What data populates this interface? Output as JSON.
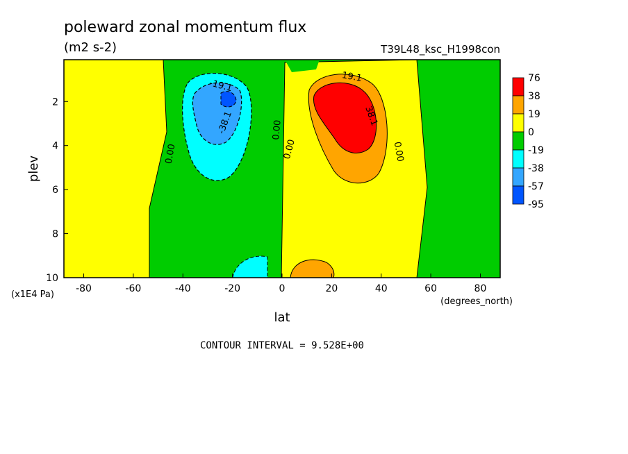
{
  "title": "poleward zonal momentum flux",
  "units": "(m2 s-2)",
  "run_id": "T39L48_ksc_H1998con",
  "contour_interval": "CONTOUR INTERVAL = 9.528E+00",
  "colors": {
    "c76": "#ff0000",
    "c38": "#ffa500",
    "c19": "#ffff00",
    "c0": "#00cc00",
    "cm19": "#00ffff",
    "cm38": "#33a6ff",
    "cm57": "#0055ff"
  },
  "chart_data": {
    "type": "heatmap",
    "subtype": "filled contour",
    "title": "poleward zonal momentum flux",
    "units": "(m2 s-2)",
    "xlabel": "lat",
    "x_units": "(degrees_north)",
    "ylabel": "plev",
    "y_units": "(x1E4 Pa)",
    "xlim": [
      -88,
      88
    ],
    "ylim": [
      10,
      0.1
    ],
    "x_ticks": [
      "-80",
      "-60",
      "-40",
      "-20",
      "0",
      "20",
      "40",
      "60",
      "80"
    ],
    "y_ticks": [
      "2",
      "4",
      "6",
      "8",
      "10"
    ],
    "colorbar_levels": [
      "76",
      "38",
      "19",
      "0",
      "-19",
      "-38",
      "-57",
      "-95"
    ],
    "contour_labels": [
      "-19.1",
      "-38.1",
      "0.00",
      "0.00",
      "0.00",
      "0.00",
      "19.1",
      "38.1"
    ],
    "features": [
      {
        "sign": "negative",
        "lat_center": -28,
        "plev_center": 2.6,
        "min_approx": -60
      },
      {
        "sign": "positive",
        "lat_center": 25,
        "plev_center": 2.5,
        "max_approx": 60
      },
      {
        "sign": "positive",
        "lat_center": 12,
        "plev_center": 9.5,
        "max_approx": 25
      },
      {
        "sign": "negative",
        "lat_center": -10,
        "plev_center": 9.5,
        "min_approx": -25
      }
    ]
  }
}
